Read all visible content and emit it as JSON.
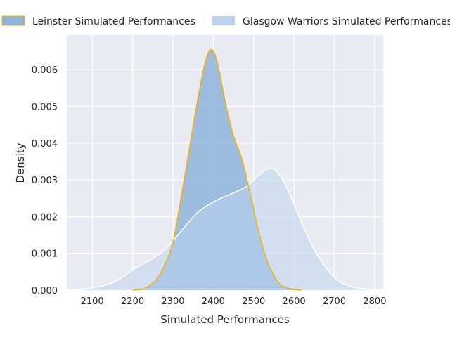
{
  "chart_data": {
    "type": "area",
    "title": "",
    "xlabel": "Simulated Performances",
    "ylabel": "Density",
    "xlim": [
      2037,
      2821
    ],
    "ylim": [
      0,
      0.00694
    ],
    "xticks": [
      2100,
      2200,
      2300,
      2400,
      2500,
      2600,
      2700,
      2800
    ],
    "xtick_labels": [
      "2100",
      "2200",
      "2300",
      "2400",
      "2500",
      "2600",
      "2700",
      "2800"
    ],
    "yticks": [
      0,
      0.001,
      0.002,
      0.003,
      0.004,
      0.005,
      0.006
    ],
    "ytick_labels": [
      "0.000",
      "0.001",
      "0.002",
      "0.003",
      "0.004",
      "0.005",
      "0.006"
    ],
    "grid": true,
    "legend_placement": "top",
    "series": [
      {
        "name": "Leinster Simulated Performances",
        "fill": "#8fb4da",
        "edge": "#f2b200",
        "x": [
          2200,
          2230,
          2260,
          2280,
          2300,
          2320,
          2340,
          2360,
          2380,
          2395,
          2410,
          2430,
          2450,
          2470,
          2490,
          2510,
          2530,
          2550,
          2570,
          2600,
          2620
        ],
        "y": [
          0,
          5e-05,
          0.0003,
          0.0007,
          0.0013,
          0.0025,
          0.0038,
          0.0051,
          0.0062,
          0.00655,
          0.0062,
          0.0051,
          0.0042,
          0.0036,
          0.0027,
          0.0017,
          0.0009,
          0.0004,
          0.00012,
          2e-05,
          0
        ]
      },
      {
        "name": "Glasgow Warriors Simulated Performances",
        "fill": "#b9d3ee",
        "edge": "#ffffff",
        "x": [
          2040,
          2080,
          2120,
          2160,
          2200,
          2240,
          2280,
          2320,
          2360,
          2400,
          2440,
          2480,
          2510,
          2535,
          2560,
          2590,
          2620,
          2650,
          2680,
          2710,
          2750,
          2800,
          2820
        ],
        "y": [
          0,
          3e-05,
          0.0001,
          0.00025,
          0.00055,
          0.0008,
          0.0011,
          0.0016,
          0.0021,
          0.0024,
          0.0026,
          0.0028,
          0.0031,
          0.0033,
          0.0032,
          0.0026,
          0.0018,
          0.0011,
          0.0006,
          0.00025,
          7e-05,
          1e-05,
          0
        ]
      }
    ]
  }
}
